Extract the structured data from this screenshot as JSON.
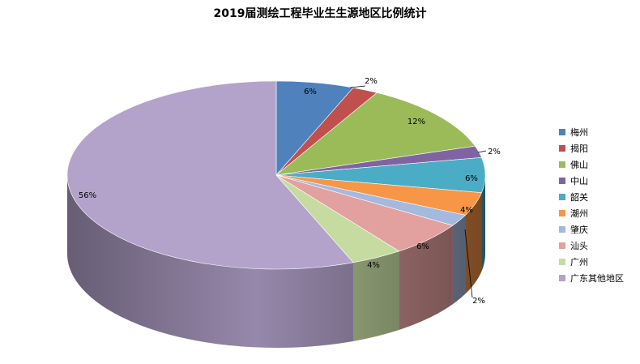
{
  "chart_data": {
    "type": "pie",
    "title": "2019届测绘工程毕业生生源地区比例统计",
    "slices": [
      {
        "name": "梅州",
        "value": 6,
        "label": "6%",
        "color": "#4F81BD"
      },
      {
        "name": "揭阳",
        "value": 2,
        "label": "2%",
        "color": "#C0504D"
      },
      {
        "name": "佛山",
        "value": 12,
        "label": "12%",
        "color": "#9BBB59"
      },
      {
        "name": "中山",
        "value": 2,
        "label": "2%",
        "color": "#8064A2"
      },
      {
        "name": "韶关",
        "value": 6,
        "label": "6%",
        "color": "#4BACC6"
      },
      {
        "name": "潮州",
        "value": 4,
        "label": "4%",
        "color": "#F79646"
      },
      {
        "name": "肇庆",
        "value": 2,
        "label": "2%",
        "color": "#A5B9DF"
      },
      {
        "name": "汕头",
        "value": 6,
        "label": "6%",
        "color": "#E2A09E"
      },
      {
        "name": "广州",
        "value": 4,
        "label": "4%",
        "color": "#C5DBA0"
      },
      {
        "name": "广东其他地区",
        "value": 56,
        "label": "56%",
        "color": "#B3A3CB"
      }
    ],
    "legend_position": "right",
    "style": "3d-pie"
  }
}
